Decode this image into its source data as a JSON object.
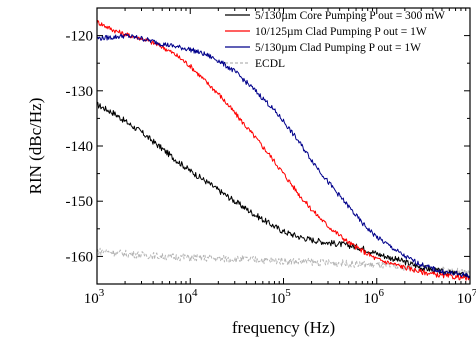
{
  "chart_data": {
    "type": "line",
    "xlabel": "frequency (Hz)",
    "ylabel": "RIN (dBc/Hz)",
    "xscale": "log",
    "xlim": [
      1000,
      10000000
    ],
    "ylim": [
      -165,
      -115
    ],
    "x_ticks": [
      {
        "value": 1000,
        "base": "10",
        "exp": "3"
      },
      {
        "value": 10000,
        "base": "10",
        "exp": "4"
      },
      {
        "value": 100000,
        "base": "10",
        "exp": "5"
      },
      {
        "value": 1000000,
        "base": "10",
        "exp": "6"
      },
      {
        "value": 10000000,
        "base": "10",
        "exp": "7"
      }
    ],
    "y_ticks": [
      {
        "value": -120,
        "label": "-120"
      },
      {
        "value": -130,
        "label": "-130"
      },
      {
        "value": -140,
        "label": "-140"
      },
      {
        "value": -150,
        "label": "-150"
      },
      {
        "value": -160,
        "label": "-160"
      }
    ],
    "grid": false,
    "legend_position": "top-right",
    "series": [
      {
        "name": "5/130µm Core Pumping P out = 300 mW",
        "color": "#000000",
        "noise": 0.55,
        "x": [
          1000,
          1500,
          2000,
          3000,
          5000,
          7000,
          10000,
          15000,
          20000,
          30000,
          50000,
          70000,
          100000,
          150000,
          200000,
          300000,
          500000,
          700000,
          1000000,
          2000000,
          3000000,
          5000000,
          10000000
        ],
        "y": [
          -132.5,
          -134,
          -135.5,
          -137.5,
          -140.5,
          -142.5,
          -144.5,
          -146.5,
          -148,
          -150,
          -152.5,
          -154,
          -155.5,
          -156.5,
          -157,
          -157.5,
          -158,
          -158.5,
          -159.5,
          -161,
          -162,
          -162.8,
          -163.5
        ]
      },
      {
        "name": "10/125µm Clad Pumping P out = 1W",
        "color": "#ff0000",
        "noise": 0.45,
        "x": [
          1000,
          1500,
          2000,
          3000,
          5000,
          7000,
          10000,
          15000,
          20000,
          30000,
          50000,
          70000,
          100000,
          150000,
          200000,
          300000,
          500000,
          700000,
          1000000,
          2000000,
          3000000,
          5000000,
          10000000
        ],
        "y": [
          -117.5,
          -119,
          -119.8,
          -120.5,
          -122,
          -123.5,
          -125.5,
          -128.5,
          -130.5,
          -134,
          -138.5,
          -141.5,
          -145,
          -149,
          -151.5,
          -154.5,
          -157.5,
          -159,
          -160.5,
          -162,
          -162.8,
          -163.5,
          -164
        ]
      },
      {
        "name": "5/130µm Clad Pumping P out = 1W",
        "color": "#00008b",
        "noise": 0.45,
        "x": [
          1000,
          1500,
          2000,
          3000,
          5000,
          7000,
          10000,
          15000,
          20000,
          30000,
          50000,
          70000,
          100000,
          150000,
          200000,
          300000,
          500000,
          700000,
          1000000,
          2000000,
          3000000,
          5000000,
          10000000
        ],
        "y": [
          -120.5,
          -120.3,
          -120,
          -120.5,
          -121.5,
          -122,
          -122.5,
          -123.5,
          -124.5,
          -126.5,
          -130,
          -132.5,
          -135.5,
          -139.5,
          -142.5,
          -146.5,
          -151,
          -154,
          -156.5,
          -160,
          -161.5,
          -162.8,
          -163.5
        ]
      },
      {
        "name": "ECDL",
        "color": "#b4b4b4",
        "noise": 0.65,
        "x": [
          1000,
          2000,
          5000,
          10000,
          20000,
          50000,
          100000,
          200000,
          500000,
          1000000,
          2000000,
          5000000,
          10000000
        ],
        "y": [
          -159,
          -159.5,
          -160,
          -160.2,
          -160.4,
          -160.6,
          -160.8,
          -161,
          -161.3,
          -161.6,
          -162,
          -162.5,
          -163
        ]
      }
    ]
  }
}
